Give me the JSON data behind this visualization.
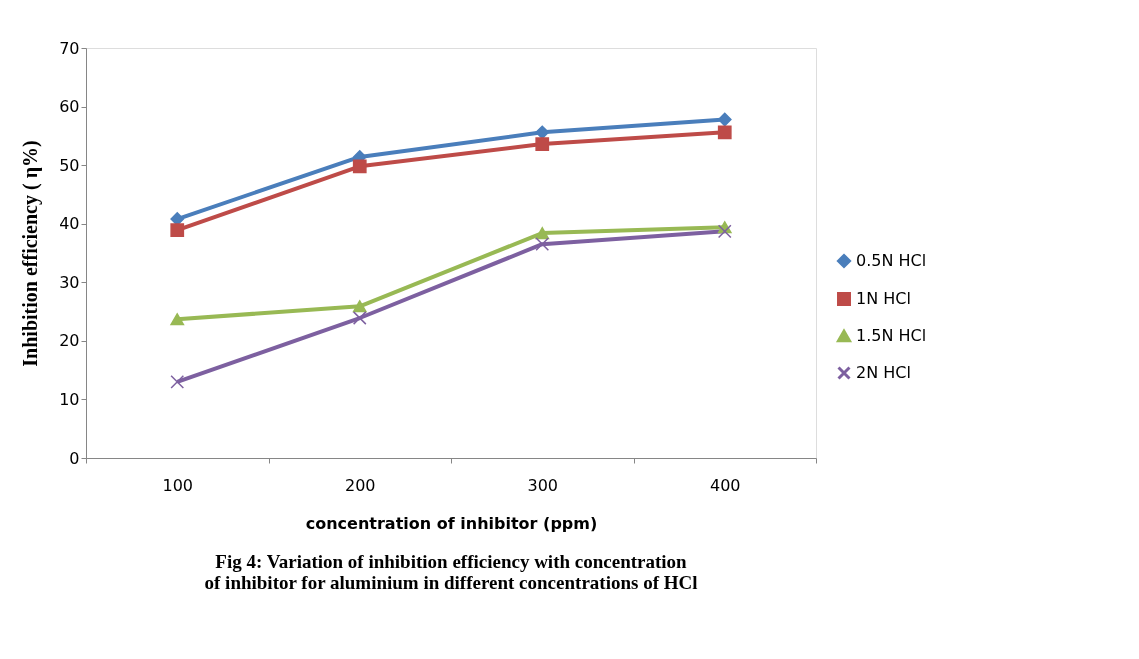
{
  "chart_data": {
    "type": "line",
    "xlabel": "concentration of inhibitor (ppm)",
    "ylabel": "Inhibition efficiency ( η%)",
    "categories": [
      "100",
      "200",
      "300",
      "400"
    ],
    "ylim": [
      0,
      70
    ],
    "yticks": [
      0,
      10,
      20,
      30,
      40,
      50,
      60,
      70
    ],
    "grid": false,
    "legend": "right",
    "series": [
      {
        "name": "0.5N HCl",
        "color": "#4a7ebb",
        "marker": "diamond",
        "values": [
          40.8,
          51.4,
          55.6,
          57.8
        ]
      },
      {
        "name": "1N HCl",
        "color": "#be4b48",
        "marker": "square",
        "values": [
          38.9,
          49.8,
          53.6,
          55.6
        ]
      },
      {
        "name": "1.5N HCl",
        "color": "#98b954",
        "marker": "triangle",
        "values": [
          23.7,
          25.9,
          38.4,
          39.4
        ]
      },
      {
        "name": "2N HCl",
        "color": "#7d60a0",
        "marker": "cross",
        "values": [
          13.0,
          23.9,
          36.5,
          38.7
        ]
      }
    ],
    "annotations": [
      "Fig 4: Variation of inhibition efficiency with concentration of inhibitor for aluminium in different concentrations of HCl"
    ]
  }
}
